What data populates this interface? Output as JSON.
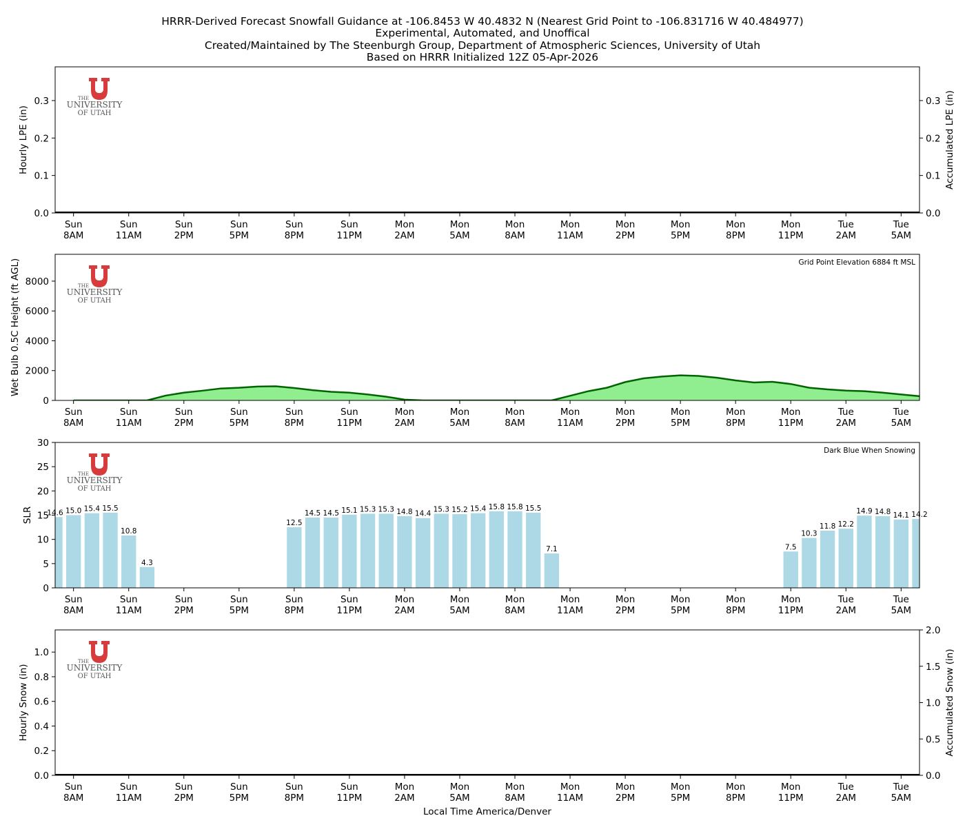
{
  "figure": {
    "title_lines": [
      "HRRR-Derived Forecast Snowfall Guidance at -106.8453 W 40.4832 N (Nearest Grid Point to -106.831716 W 40.484977)",
      "Experimental, Automated, and Unoffical",
      "Created/Maintained by The Steenburgh Group, Department of Atmospheric Sciences, University of Utah",
      "Based on HRRR Initialized 12Z 05-Apr-2026"
    ],
    "xlabel": "Local Time America/Denver",
    "logo": {
      "line1": "THE",
      "line2": "UNIVERSITY",
      "line3": "OF UTAH"
    },
    "colors": {
      "utah_red": "#d83b3b",
      "wetbulb_fill": "#90ee90",
      "wetbulb_line": "#006400",
      "slr_bar": "#add8e6"
    }
  },
  "chart_data": [
    {
      "type": "bar",
      "id": "lpe",
      "ylabel": "Hourly LPE (in)",
      "ylabel_right": "Accumulated LPE (in)",
      "ylim": [
        0,
        0.39
      ],
      "yticks": [
        "0.0",
        "0.1",
        "0.2",
        "0.3"
      ],
      "yticks_right": [
        "0.0",
        "0.1",
        "0.2",
        "0.3"
      ],
      "xlim": [
        -1,
        46
      ],
      "tick_positions": [
        0,
        3,
        6,
        9,
        12,
        15,
        18,
        21,
        24,
        27,
        30,
        33,
        36,
        39,
        42,
        45
      ],
      "tick_labels": [
        [
          "Sun",
          "8AM"
        ],
        [
          "Sun",
          "11AM"
        ],
        [
          "Sun",
          "2PM"
        ],
        [
          "Sun",
          "5PM"
        ],
        [
          "Sun",
          "8PM"
        ],
        [
          "Sun",
          "11PM"
        ],
        [
          "Mon",
          "2AM"
        ],
        [
          "Mon",
          "5AM"
        ],
        [
          "Mon",
          "8AM"
        ],
        [
          "Mon",
          "11AM"
        ],
        [
          "Mon",
          "2PM"
        ],
        [
          "Mon",
          "5PM"
        ],
        [
          "Mon",
          "8PM"
        ],
        [
          "Mon",
          "11PM"
        ],
        [
          "Tue",
          "2AM"
        ],
        [
          "Tue",
          "5AM"
        ]
      ],
      "values": [],
      "accumulated": [
        0,
        0
      ]
    },
    {
      "type": "area",
      "id": "wetbulb",
      "ylabel": "Wet Bulb 0.5C Height (ft AGL)",
      "annotation": "Grid Point Elevation 6884 ft MSL",
      "ylim": [
        0,
        9800
      ],
      "yticks": [
        "0",
        "2000",
        "4000",
        "6000",
        "8000"
      ],
      "xlim": [
        -1,
        46
      ],
      "tick_positions": [
        0,
        3,
        6,
        9,
        12,
        15,
        18,
        21,
        24,
        27,
        30,
        33,
        36,
        39,
        42,
        45
      ],
      "tick_labels": [
        [
          "Sun",
          "8AM"
        ],
        [
          "Sun",
          "11AM"
        ],
        [
          "Sun",
          "2PM"
        ],
        [
          "Sun",
          "5PM"
        ],
        [
          "Sun",
          "8PM"
        ],
        [
          "Sun",
          "11PM"
        ],
        [
          "Mon",
          "2AM"
        ],
        [
          "Mon",
          "5AM"
        ],
        [
          "Mon",
          "8AM"
        ],
        [
          "Mon",
          "11AM"
        ],
        [
          "Mon",
          "2PM"
        ],
        [
          "Mon",
          "5PM"
        ],
        [
          "Mon",
          "8PM"
        ],
        [
          "Mon",
          "11PM"
        ],
        [
          "Tue",
          "2AM"
        ],
        [
          "Tue",
          "5AM"
        ]
      ],
      "x": [
        0,
        1,
        2,
        3,
        4,
        5,
        6,
        7,
        8,
        9,
        10,
        11,
        12,
        13,
        14,
        15,
        16,
        17,
        18,
        19,
        20,
        21,
        22,
        23,
        24,
        25,
        26,
        27,
        28,
        29,
        30,
        31,
        32,
        33,
        34,
        35,
        36,
        37,
        38,
        39,
        40,
        41,
        42,
        43,
        44,
        45,
        46
      ],
      "values": [
        0,
        0,
        0,
        0,
        0,
        320,
        520,
        650,
        800,
        850,
        930,
        950,
        830,
        690,
        580,
        520,
        400,
        250,
        50,
        0,
        0,
        0,
        0,
        0,
        0,
        0,
        0,
        310,
        620,
        850,
        1230,
        1480,
        1600,
        1680,
        1640,
        1520,
        1340,
        1200,
        1250,
        1100,
        850,
        740,
        660,
        620,
        520,
        400,
        280
      ]
    },
    {
      "type": "bar",
      "id": "slr",
      "ylabel": "SLR",
      "annotation": "Dark Blue When Snowing",
      "ylim": [
        0,
        30
      ],
      "yticks": [
        "0",
        "5",
        "10",
        "15",
        "20",
        "25",
        "30"
      ],
      "xlim": [
        -1,
        46
      ],
      "tick_positions": [
        0,
        3,
        6,
        9,
        12,
        15,
        18,
        21,
        24,
        27,
        30,
        33,
        36,
        39,
        42,
        45
      ],
      "tick_labels": [
        [
          "Sun",
          "8AM"
        ],
        [
          "Sun",
          "11AM"
        ],
        [
          "Sun",
          "2PM"
        ],
        [
          "Sun",
          "5PM"
        ],
        [
          "Sun",
          "8PM"
        ],
        [
          "Sun",
          "11PM"
        ],
        [
          "Mon",
          "2AM"
        ],
        [
          "Mon",
          "5AM"
        ],
        [
          "Mon",
          "8AM"
        ],
        [
          "Mon",
          "11AM"
        ],
        [
          "Mon",
          "2PM"
        ],
        [
          "Mon",
          "5PM"
        ],
        [
          "Mon",
          "8PM"
        ],
        [
          "Mon",
          "11PM"
        ],
        [
          "Tue",
          "2AM"
        ],
        [
          "Tue",
          "5AM"
        ]
      ],
      "x": [
        -1,
        0,
        1,
        2,
        3,
        4,
        12,
        13,
        14,
        15,
        16,
        17,
        18,
        19,
        20,
        21,
        22,
        23,
        24,
        25,
        26,
        39,
        40,
        41,
        42,
        43,
        44,
        45,
        46
      ],
      "values": [
        14.6,
        15.0,
        15.4,
        15.5,
        10.8,
        4.3,
        12.5,
        14.5,
        14.5,
        15.1,
        15.3,
        15.3,
        14.8,
        14.4,
        15.3,
        15.2,
        15.4,
        15.8,
        15.8,
        15.5,
        7.1,
        7.5,
        10.3,
        11.8,
        12.2,
        14.9,
        14.8,
        14.1,
        14.2
      ],
      "labels": [
        "14.6",
        "15.0",
        "15.4",
        "15.5",
        "10.8",
        "4.3",
        "12.5",
        "14.5",
        "14.5",
        "15.1",
        "15.3",
        "15.3",
        "14.8",
        "14.4",
        "15.3",
        "15.2",
        "15.4",
        "15.8",
        "15.8",
        "15.5",
        "7.1",
        "7.5",
        "10.3",
        "11.8",
        "12.2",
        "14.9",
        "14.8",
        "14.1",
        "14.2"
      ]
    },
    {
      "type": "bar",
      "id": "snow",
      "ylabel": "Hourly Snow (in)",
      "ylabel_right": "Accumulated Snow (in)",
      "ylim": [
        0,
        1.18
      ],
      "yticks": [
        "0.0",
        "0.2",
        "0.4",
        "0.6",
        "0.8",
        "1.0"
      ],
      "ylim_right": [
        0,
        2.0
      ],
      "yticks_right": [
        "0.0",
        "0.5",
        "1.0",
        "1.5",
        "2.0"
      ],
      "xlim": [
        -1,
        46
      ],
      "tick_positions": [
        0,
        3,
        6,
        9,
        12,
        15,
        18,
        21,
        24,
        27,
        30,
        33,
        36,
        39,
        42,
        45
      ],
      "tick_labels": [
        [
          "Sun",
          "8AM"
        ],
        [
          "Sun",
          "11AM"
        ],
        [
          "Sun",
          "2PM"
        ],
        [
          "Sun",
          "5PM"
        ],
        [
          "Sun",
          "8PM"
        ],
        [
          "Sun",
          "11PM"
        ],
        [
          "Mon",
          "2AM"
        ],
        [
          "Mon",
          "5AM"
        ],
        [
          "Mon",
          "8AM"
        ],
        [
          "Mon",
          "11AM"
        ],
        [
          "Mon",
          "2PM"
        ],
        [
          "Mon",
          "5PM"
        ],
        [
          "Mon",
          "8PM"
        ],
        [
          "Mon",
          "11PM"
        ],
        [
          "Tue",
          "2AM"
        ],
        [
          "Tue",
          "5AM"
        ]
      ],
      "values": [],
      "accumulated": [
        0,
        0
      ]
    }
  ]
}
